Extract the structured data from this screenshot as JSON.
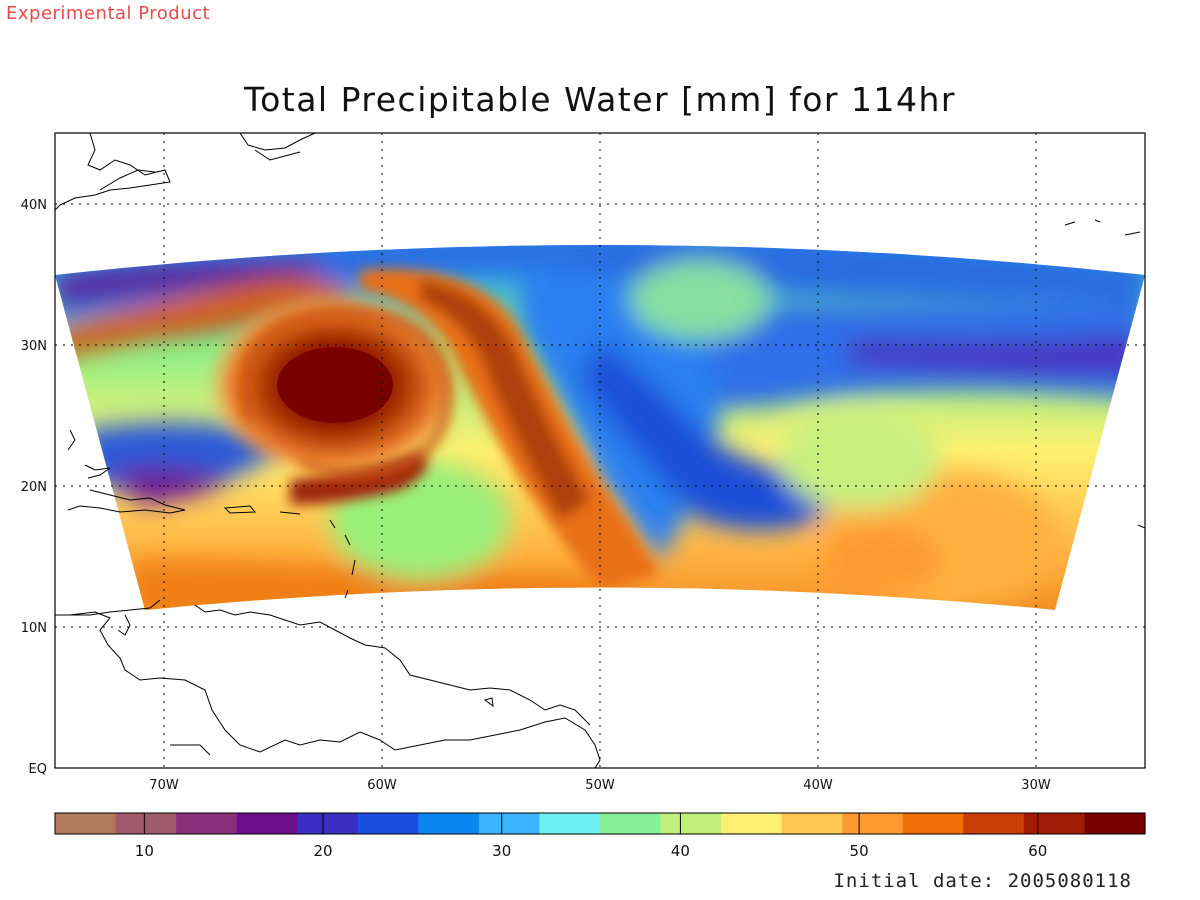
{
  "header": {
    "banner": "Experimental Product",
    "title": "Total Precipitable Water [mm] for 114hr"
  },
  "footer": {
    "initial_date": "Initial date: 2005080118"
  },
  "map": {
    "projection": "lat-lon",
    "lon_range": [
      -75,
      -25
    ],
    "lat_range": [
      0,
      45
    ],
    "lon_ticks": [
      {
        "value": -70,
        "label": "70W"
      },
      {
        "value": -60,
        "label": "60W"
      },
      {
        "value": -50,
        "label": "50W"
      },
      {
        "value": -40,
        "label": "40W"
      },
      {
        "value": -30,
        "label": "30W"
      }
    ],
    "lat_ticks": [
      {
        "value": 0,
        "label": "EQ"
      },
      {
        "value": 10,
        "label": "10N"
      },
      {
        "value": 20,
        "label": "20N"
      },
      {
        "value": 30,
        "label": "30N"
      },
      {
        "value": 40,
        "label": "40N"
      }
    ],
    "grid": "dotted",
    "field": "total precipitable water",
    "features": [
      "storm-vortex",
      "coastlines",
      "model-domain"
    ]
  },
  "colorbar": {
    "range": [
      5,
      66
    ],
    "ticks": [
      10,
      20,
      30,
      40,
      50,
      60
    ],
    "colors": [
      "#b0795a",
      "#9e5a6a",
      "#8a2f7a",
      "#6a0e8a",
      "#3a2ec0",
      "#1a4ee0",
      "#0a86f0",
      "#3ab4ff",
      "#6ef0f0",
      "#86f096",
      "#c0f07a",
      "#fff070",
      "#ffc850",
      "#ff9a30",
      "#f06e06",
      "#c83e04",
      "#a01a04",
      "#7a0000"
    ]
  }
}
